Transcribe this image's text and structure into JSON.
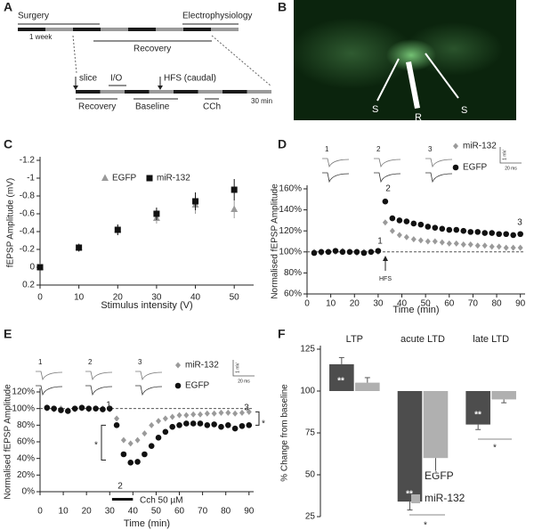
{
  "panels": {
    "A": {
      "label": "A",
      "texts": [
        "Surgery",
        "Electrophysiology",
        "1 week",
        "Recovery",
        "slice",
        "I/O",
        "HFS (caudal)",
        "Recovery",
        "Baseline",
        "CCh",
        "30 min"
      ]
    },
    "B": {
      "label": "B",
      "texts": [
        "S",
        "R",
        "S"
      ]
    }
  },
  "chart_data": [
    {
      "label": "C",
      "type": "scatter",
      "xlabel": "Stimulus intensity (V)",
      "ylabel": "fEPSP Amplitude (mV)",
      "x": [
        0,
        10,
        20,
        30,
        40,
        50
      ],
      "xlim": [
        0,
        55
      ],
      "xticks": [
        0,
        10,
        20,
        30,
        40,
        50
      ],
      "ylim": [
        0.2,
        -1.2
      ],
      "yticks": [
        0.2,
        0,
        -0.2,
        -0.4,
        -0.6,
        -0.8,
        -1,
        -1.2
      ],
      "series": [
        {
          "name": "EGFP",
          "color": "#9a9a9a",
          "marker": "triangle",
          "values": [
            0,
            -0.22,
            -0.42,
            -0.55,
            -0.7,
            -0.65
          ],
          "errors": [
            0.02,
            0.05,
            0.06,
            0.06,
            0.1,
            0.1
          ]
        },
        {
          "name": "miR-132",
          "color": "#111111",
          "marker": "square",
          "values": [
            0,
            -0.22,
            -0.42,
            -0.6,
            -0.74,
            -0.87
          ],
          "errors": [
            0.02,
            0.04,
            0.06,
            0.07,
            0.1,
            0.12
          ]
        }
      ]
    },
    {
      "label": "D",
      "type": "scatter",
      "xlabel": "Time (min)",
      "ylabel": "Normalised fEPSP Amplitude",
      "x": [
        3,
        6,
        9,
        12,
        15,
        18,
        21,
        24,
        27,
        30,
        33,
        36,
        39,
        42,
        45,
        48,
        51,
        54,
        57,
        60,
        63,
        66,
        69,
        72,
        75,
        78,
        81,
        84,
        87,
        90
      ],
      "xlim": [
        0,
        92
      ],
      "xticks": [
        0,
        10,
        20,
        30,
        40,
        50,
        60,
        70,
        80,
        90
      ],
      "ylim": [
        60,
        160
      ],
      "yticks": [
        {
          "value": 60,
          "label": "60%"
        },
        {
          "value": 80,
          "label": "80%"
        },
        {
          "value": 100,
          "label": "100%"
        },
        {
          "value": 120,
          "label": "120%"
        },
        {
          "value": 140,
          "label": "140%"
        },
        {
          "value": 160,
          "label": "160%"
        }
      ],
      "reference_line": 100,
      "series": [
        {
          "name": "miR-132",
          "color": "#9a9a9a",
          "marker": "diamond",
          "values": [
            100,
            99,
            100,
            100,
            101,
            100,
            99,
            100,
            100,
            100,
            128,
            120,
            116,
            114,
            112,
            111,
            110,
            110,
            109,
            108,
            108,
            107,
            107,
            106,
            106,
            105,
            105,
            104,
            104,
            104
          ]
        },
        {
          "name": "EGFP",
          "color": "#111111",
          "marker": "circle",
          "values": [
            99,
            100,
            100,
            101,
            100,
            100,
            100,
            99,
            100,
            101,
            148,
            132,
            130,
            129,
            127,
            126,
            124,
            123,
            122,
            121,
            121,
            120,
            119,
            119,
            118,
            118,
            117,
            117,
            116,
            117
          ]
        }
      ],
      "annotations": [
        "1",
        "2",
        "3",
        "HFS"
      ],
      "inset_labels": [
        "1",
        "2",
        "3"
      ],
      "scale_labels": [
        "1 mV",
        "20 ms"
      ]
    },
    {
      "label": "E",
      "type": "scatter",
      "xlabel": "Time (min)",
      "ylabel": "Normalised fEPSP Amplitude",
      "x": [
        3,
        6,
        9,
        12,
        15,
        18,
        21,
        24,
        27,
        30,
        33,
        36,
        39,
        42,
        45,
        48,
        51,
        54,
        57,
        60,
        63,
        66,
        69,
        72,
        75,
        78,
        81,
        84,
        87,
        90
      ],
      "xlim": [
        0,
        92
      ],
      "xticks": [
        0,
        10,
        20,
        30,
        40,
        50,
        60,
        70,
        80,
        90
      ],
      "ylim": [
        0,
        120
      ],
      "yticks": [
        {
          "value": 0,
          "label": "0%"
        },
        {
          "value": 20,
          "label": "20%"
        },
        {
          "value": 40,
          "label": "40%"
        },
        {
          "value": 60,
          "label": "60%"
        },
        {
          "value": 80,
          "label": "80%"
        },
        {
          "value": 100,
          "label": "100%"
        },
        {
          "value": 120,
          "label": "120%"
        }
      ],
      "reference_line": 100,
      "series": [
        {
          "name": "miR-132",
          "color": "#9a9a9a",
          "marker": "diamond",
          "values": [
            100,
            99,
            100,
            98,
            99,
            100,
            99,
            100,
            100,
            99,
            88,
            62,
            58,
            62,
            70,
            80,
            85,
            88,
            90,
            92,
            92,
            93,
            93,
            94,
            94,
            95,
            95,
            94,
            95,
            96
          ]
        },
        {
          "name": "EGFP",
          "color": "#111111",
          "marker": "circle",
          "values": [
            101,
            100,
            98,
            97,
            100,
            101,
            100,
            100,
            99,
            100,
            80,
            45,
            35,
            36,
            45,
            55,
            65,
            72,
            78,
            80,
            82,
            82,
            82,
            80,
            81,
            78,
            80,
            76,
            79,
            80
          ]
        }
      ],
      "annotations": [
        "1",
        "2",
        "3",
        "Cch 50 µM",
        "*",
        "*"
      ],
      "inset_labels": [
        "1",
        "2",
        "3"
      ],
      "scale_labels": [
        "1 mV",
        "20 ms"
      ]
    },
    {
      "label": "F",
      "type": "bar",
      "ylabel": "% Change from baseline",
      "categories": [
        "LTP",
        "acute LTD",
        "late LTD"
      ],
      "ylim": [
        25,
        125
      ],
      "yticks": [
        25,
        50,
        75,
        100,
        125
      ],
      "baseline": 100,
      "series": [
        {
          "name": "EGFP",
          "color": "#4d4d4d",
          "values": [
            116,
            34,
            80
          ],
          "errors": [
            4,
            5,
            3
          ]
        },
        {
          "name": "miR-132",
          "color": "#b0b0b0",
          "values": [
            105,
            60,
            95
          ],
          "errors": [
            3,
            9,
            2
          ]
        }
      ],
      "annotations": [
        "**",
        "**",
        "**",
        "**",
        "*",
        "*"
      ]
    }
  ]
}
